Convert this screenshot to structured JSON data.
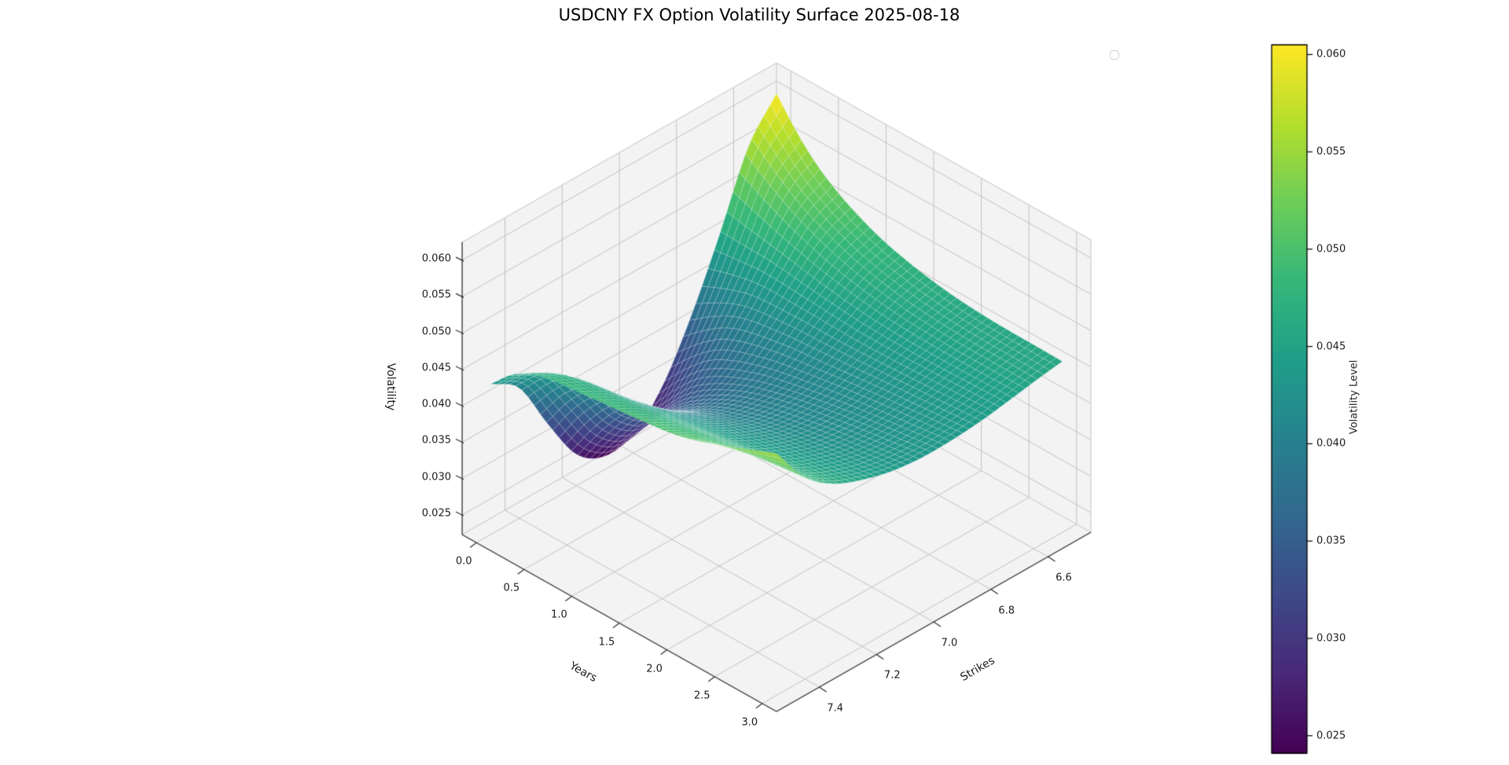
{
  "chart_data": {
    "type": "surface3d",
    "title": "USDCNY FX Option Volatility Surface 2025-08-18",
    "xlabel": "Years",
    "ylabel": "Strikes",
    "zlabel": "Volatility",
    "colorbar_label": "Volatility Level",
    "colormap": "viridis",
    "colormap_stops": [
      "#440154",
      "#482878",
      "#3e4989",
      "#31688e",
      "#26828e",
      "#1f9e89",
      "#35b779",
      "#6dcd59",
      "#b4de2c",
      "#fde725"
    ],
    "vmin": 0.0241,
    "vmax": 0.0605,
    "xlim": [
      -0.15,
      3.15
    ],
    "ylim_display": [
      7.55,
      6.45
    ],
    "zlim": [
      0.0223,
      0.0625
    ],
    "x_ticks": [
      0.0,
      0.5,
      1.0,
      1.5,
      2.0,
      2.5,
      3.0
    ],
    "x_tick_labels": [
      "0.0",
      "0.5",
      "1.0",
      "1.5",
      "2.0",
      "2.5",
      "3.0"
    ],
    "y_ticks": [
      7.4,
      7.2,
      7.0,
      6.8,
      6.6
    ],
    "y_tick_labels": [
      "7.4",
      "7.2",
      "7.0",
      "6.8",
      "6.6"
    ],
    "z_ticks": [
      0.025,
      0.03,
      0.035,
      0.04,
      0.045,
      0.05,
      0.055,
      0.06
    ],
    "z_tick_labels": [
      "0.025",
      "0.030",
      "0.035",
      "0.040",
      "0.045",
      "0.050",
      "0.055",
      "0.060"
    ],
    "colorbar_ticks": [
      0.025,
      0.03,
      0.035,
      0.04,
      0.045,
      0.05,
      0.055,
      0.06
    ],
    "colorbar_tick_labels": [
      "0.025",
      "0.030",
      "0.035",
      "0.040",
      "0.045",
      "0.050",
      "0.055",
      "0.060"
    ],
    "years": [
      0.0,
      0.25,
      0.5,
      1.0,
      1.5,
      2.0,
      3.0
    ],
    "strikes": [
      6.5,
      6.6,
      6.7,
      6.8,
      6.9,
      7.0,
      7.1,
      7.2,
      7.3,
      7.4,
      7.5
    ],
    "vol_matrix": [
      [
        0.0605,
        0.0553,
        0.0455,
        0.0365,
        0.0292,
        0.025,
        0.0241,
        0.0266,
        0.033,
        0.0402,
        0.043
      ],
      [
        0.0562,
        0.0528,
        0.0455,
        0.0388,
        0.033,
        0.0293,
        0.0287,
        0.0318,
        0.038,
        0.0437,
        0.0462
      ],
      [
        0.053,
        0.0506,
        0.0455,
        0.0405,
        0.036,
        0.0332,
        0.033,
        0.036,
        0.0412,
        0.0456,
        0.0478
      ],
      [
        0.0492,
        0.0477,
        0.0448,
        0.0417,
        0.039,
        0.0376,
        0.0378,
        0.04,
        0.0432,
        0.0465,
        0.0488
      ],
      [
        0.0472,
        0.0461,
        0.0442,
        0.0422,
        0.0406,
        0.04,
        0.0403,
        0.0419,
        0.0443,
        0.0472,
        0.0495
      ],
      [
        0.0462,
        0.0454,
        0.0441,
        0.0428,
        0.0418,
        0.0415,
        0.0419,
        0.0432,
        0.0452,
        0.0482,
        0.0505
      ],
      [
        0.0458,
        0.0452,
        0.0445,
        0.0439,
        0.0436,
        0.0436,
        0.0441,
        0.0452,
        0.0469,
        0.05,
        0.0555
      ]
    ],
    "grid_on": true,
    "legend_empty": true,
    "colors": {
      "background": "#ffffff",
      "pane": "#f3f3f3",
      "grid": "#c2c2c2",
      "light_edge": "#cfcfcf",
      "spine": "#2e2e2e",
      "mesh_line": "rgba(255,255,255,0.30)",
      "tick_text": "#1c1c1c"
    }
  }
}
